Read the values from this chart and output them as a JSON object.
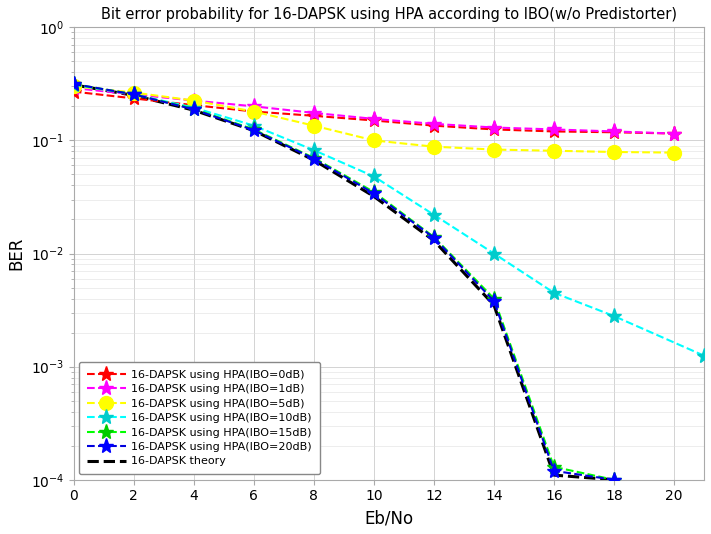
{
  "title": "Bit error probability for 16-DAPSK using HPA according to IBO(w/o Predistorter)",
  "xlabel": "Eb/No",
  "ylabel": "BER",
  "xlim": [
    0,
    21
  ],
  "ylim_log": [
    -4,
    0
  ],
  "xticks": [
    0,
    2,
    4,
    6,
    8,
    10,
    12,
    14,
    16,
    18,
    20
  ],
  "bg_color": "#ffffff",
  "series": [
    {
      "label": "16-DAPSK using HPA(IBO=0dB)",
      "color": "#ff0000",
      "marker_color": "#ff0000",
      "marker": "*",
      "markersize": 11,
      "linewidth": 1.5,
      "x": [
        0,
        2,
        4,
        6,
        8,
        10,
        12,
        14,
        16,
        18,
        20
      ],
      "y": [
        0.27,
        0.235,
        0.205,
        0.18,
        0.165,
        0.15,
        0.135,
        0.125,
        0.12,
        0.118,
        0.115
      ]
    },
    {
      "label": "16-DAPSK using HPA(IBO=1dB)",
      "color": "#ff00ff",
      "marker_color": "#ff00ff",
      "marker": "*",
      "markersize": 11,
      "linewidth": 1.5,
      "x": [
        0,
        2,
        4,
        6,
        8,
        10,
        12,
        14,
        16,
        18,
        20
      ],
      "y": [
        0.29,
        0.255,
        0.225,
        0.2,
        0.175,
        0.155,
        0.14,
        0.13,
        0.125,
        0.12,
        0.115
      ]
    },
    {
      "label": "16-DAPSK using HPA(IBO=5dB)",
      "color": "#ffff00",
      "marker_color": "#ffff00",
      "marker": "o",
      "markersize": 10,
      "linewidth": 1.5,
      "x": [
        0,
        2,
        4,
        6,
        8,
        10,
        12,
        14,
        16,
        18,
        20
      ],
      "y": [
        0.3,
        0.265,
        0.225,
        0.18,
        0.135,
        0.1,
        0.088,
        0.083,
        0.081,
        0.079,
        0.078
      ]
    },
    {
      "label": "16-DAPSK using HPA(IBO=10dB)",
      "color": "#00ffff",
      "marker_color": "#00cccc",
      "marker": "*",
      "markersize": 11,
      "linewidth": 1.5,
      "x": [
        0,
        2,
        4,
        6,
        8,
        10,
        12,
        14,
        16,
        18,
        21
      ],
      "y": [
        0.31,
        0.255,
        0.195,
        0.135,
        0.082,
        0.048,
        0.022,
        0.01,
        0.0045,
        0.0028,
        0.00125
      ]
    },
    {
      "label": "16-DAPSK using HPA(IBO=15dB)",
      "color": "#00ff00",
      "marker_color": "#00cc00",
      "marker": "*",
      "markersize": 11,
      "linewidth": 1.5,
      "x": [
        0,
        2,
        4,
        6,
        8,
        10,
        12,
        14,
        16,
        18
      ],
      "y": [
        0.315,
        0.255,
        0.19,
        0.125,
        0.07,
        0.035,
        0.014,
        0.004,
        0.00013,
        0.0001
      ]
    },
    {
      "label": "16-DAPSK using HPA(IBO=20dB)",
      "color": "#0000dd",
      "marker_color": "#0000ff",
      "marker": "*",
      "markersize": 11,
      "linewidth": 1.5,
      "x": [
        0,
        2,
        4,
        6,
        8,
        10,
        12,
        14,
        16,
        18
      ],
      "y": [
        0.315,
        0.255,
        0.188,
        0.123,
        0.069,
        0.034,
        0.0138,
        0.0038,
        0.00012,
        0.0001
      ]
    },
    {
      "label": "16-DAPSK theory",
      "color": "#000000",
      "marker_color": null,
      "marker": null,
      "markersize": 0,
      "linewidth": 2.2,
      "x": [
        0,
        2,
        4,
        6,
        8,
        10,
        12,
        14,
        16,
        18
      ],
      "y": [
        0.31,
        0.25,
        0.185,
        0.122,
        0.067,
        0.032,
        0.013,
        0.0035,
        0.00011,
        0.0001
      ]
    }
  ]
}
